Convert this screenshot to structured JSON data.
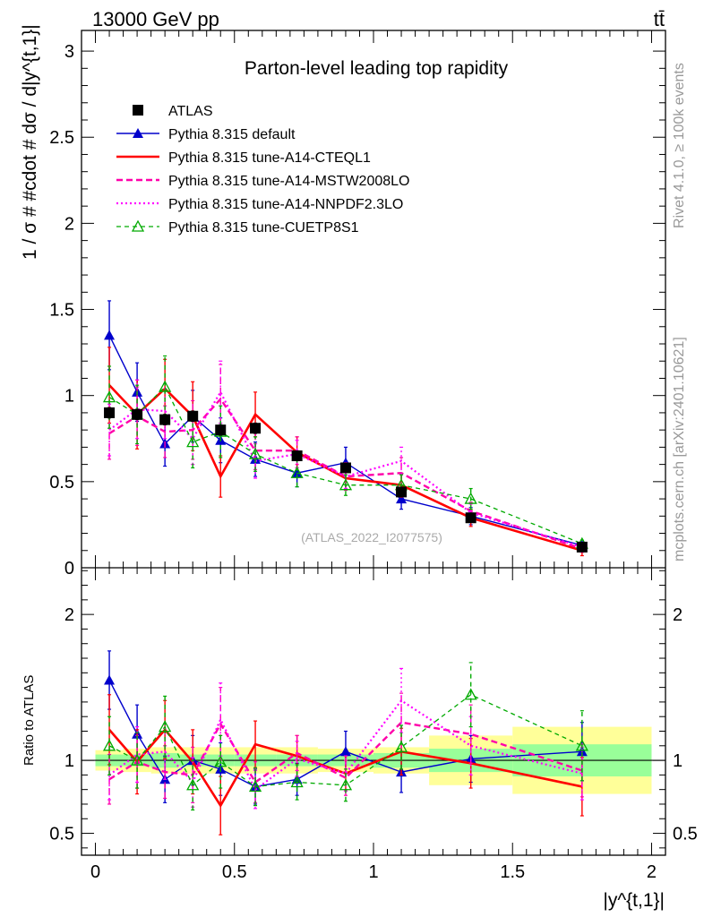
{
  "header": {
    "energy_label": "13000 GeV pp",
    "process_label": "tt̄",
    "rivet_label": "Rivet 4.1.0, ≥ 100k events",
    "mcplots_label": "mcplots.cern.ch [arXiv:2401.10621]"
  },
  "chart_data": [
    {
      "type": "line",
      "title": "Parton-level leading top rapidity",
      "watermark": "(ATLAS_2022_I2077575)",
      "xlabel": "|y^{t,1}|",
      "ylabel": "1 / σ # #cdot # dσ / d|y^{t,1}|",
      "xlim": [
        -0.05,
        2.05
      ],
      "ylim": [
        0,
        3.12
      ],
      "y_ticks": [
        0,
        0.5,
        1,
        1.5,
        2,
        2.5,
        3
      ],
      "y_tick_labels": [
        "0",
        "0.5",
        "1",
        "1.5",
        "2",
        "2.5",
        "3"
      ],
      "bin_edges": [
        0,
        0.1,
        0.2,
        0.3,
        0.4,
        0.5,
        0.65,
        0.8,
        1.0,
        1.2,
        1.5,
        2.0
      ],
      "x": [
        0.05,
        0.15,
        0.25,
        0.35,
        0.45,
        0.575,
        0.725,
        0.9,
        1.1,
        1.35,
        1.75
      ],
      "legend": {
        "position": "top-left"
      },
      "series": [
        {
          "name": "ATLAS",
          "style": "data",
          "color": "#000000",
          "values": [
            0.9,
            0.89,
            0.86,
            0.88,
            0.8,
            0.81,
            0.65,
            0.58,
            0.44,
            0.29,
            0.12
          ],
          "errors": [
            0.03,
            0.03,
            0.03,
            0.03,
            0.03,
            0.03,
            0.02,
            0.02,
            0.02,
            0.015,
            0.01
          ]
        },
        {
          "name": "Pythia 8.315 default",
          "style": "default",
          "color": "#0000cc",
          "values": [
            1.35,
            1.02,
            0.72,
            0.88,
            0.74,
            0.63,
            0.55,
            0.61,
            0.4,
            0.3,
            0.13
          ],
          "errors": [
            0.2,
            0.17,
            0.13,
            0.15,
            0.13,
            0.1,
            0.08,
            0.09,
            0.06,
            0.05,
            0.02
          ]
        },
        {
          "name": "Pythia 8.315 tune-A14-CTEQL1",
          "style": "cteq",
          "color": "#ff0000",
          "values": [
            1.06,
            0.89,
            1.04,
            0.88,
            0.53,
            0.89,
            0.67,
            0.52,
            0.48,
            0.29,
            0.1
          ],
          "errors": [
            0.22,
            0.2,
            0.17,
            0.2,
            0.12,
            0.13,
            0.09,
            0.07,
            0.07,
            0.05,
            0.03
          ]
        },
        {
          "name": "Pythia 8.315 tune-A14-MSTW2008LO",
          "style": "mstw",
          "color": "#ff00aa",
          "values": [
            0.78,
            0.88,
            0.79,
            0.8,
            0.98,
            0.68,
            0.68,
            0.53,
            0.55,
            0.33,
            0.11
          ],
          "errors": [
            0.15,
            0.17,
            0.15,
            0.17,
            0.2,
            0.11,
            0.08,
            0.08,
            0.09,
            0.05,
            0.02
          ]
        },
        {
          "name": "Pythia 8.315 tune-A14-NNPDF2.3LO",
          "style": "nnpdf",
          "color": "#ff00ff",
          "values": [
            0.8,
            0.92,
            0.91,
            0.75,
            1.02,
            0.62,
            0.66,
            0.53,
            0.62,
            0.32,
            0.12
          ],
          "errors": [
            0.15,
            0.17,
            0.16,
            0.15,
            0.18,
            0.1,
            0.08,
            0.07,
            0.08,
            0.05,
            0.02
          ]
        },
        {
          "name": "Pythia 8.315 tune-CUETP8S1",
          "style": "cuetp",
          "color": "#00aa00",
          "values": [
            0.99,
            0.89,
            1.05,
            0.73,
            0.79,
            0.66,
            0.55,
            0.48,
            0.48,
            0.4,
            0.14
          ],
          "errors": [
            0.18,
            0.17,
            0.18,
            0.15,
            0.15,
            0.1,
            0.08,
            0.06,
            0.06,
            0.06,
            0.02
          ]
        }
      ]
    },
    {
      "type": "line",
      "title": "",
      "xlabel": "|y^{t,1}|",
      "ylabel": "Ratio to ATLAS",
      "xlim": [
        -0.05,
        2.05
      ],
      "ylim": [
        0.35,
        2.32
      ],
      "y_ticks": [
        0.5,
        1,
        2
      ],
      "y_tick_labels": [
        "0.5",
        "1",
        "2"
      ],
      "x_ticks": [
        0,
        0.5,
        1,
        1.5,
        2
      ],
      "x_tick_labels": [
        "0",
        "0.5",
        "1",
        "1.5",
        "2"
      ],
      "bin_edges": [
        0,
        0.1,
        0.2,
        0.3,
        0.4,
        0.5,
        0.65,
        0.8,
        1.0,
        1.2,
        1.5,
        2.0
      ],
      "x": [
        0.05,
        0.15,
        0.25,
        0.35,
        0.45,
        0.575,
        0.725,
        0.9,
        1.1,
        1.35,
        1.75
      ],
      "band_yellow_half": [
        0.07,
        0.08,
        0.09,
        0.09,
        0.09,
        0.09,
        0.09,
        0.08,
        0.09,
        0.17,
        0.23
      ],
      "band_green_half": [
        0.04,
        0.04,
        0.05,
        0.04,
        0.04,
        0.04,
        0.04,
        0.04,
        0.05,
        0.08,
        0.11
      ],
      "series": [
        {
          "name": "Pythia 8.315 default",
          "style": "default",
          "color": "#0000cc",
          "values": [
            1.55,
            1.18,
            0.87,
            1.0,
            0.94,
            0.82,
            0.87,
            1.06,
            0.92,
            1.01,
            1.06
          ],
          "errors": [
            0.2,
            0.2,
            0.16,
            0.17,
            0.18,
            0.12,
            0.11,
            0.14,
            0.14,
            0.16,
            0.2
          ]
        },
        {
          "name": "Pythia 8.315 tune-A14-CTEQL1",
          "style": "cteq",
          "color": "#ff0000",
          "values": [
            1.21,
            0.99,
            1.21,
            0.99,
            0.69,
            1.11,
            1.03,
            0.91,
            1.06,
            0.98,
            0.82
          ],
          "errors": [
            0.24,
            0.22,
            0.2,
            0.22,
            0.2,
            0.16,
            0.14,
            0.12,
            0.16,
            0.17,
            0.2
          ]
        },
        {
          "name": "Pythia 8.315 tune-A14-MSTW2008LO",
          "style": "mstw",
          "color": "#ff00aa",
          "values": [
            0.87,
            0.99,
            0.92,
            0.9,
            1.25,
            0.85,
            1.05,
            0.88,
            1.26,
            1.18,
            0.93
          ],
          "errors": [
            0.17,
            0.18,
            0.18,
            0.19,
            0.25,
            0.14,
            0.12,
            0.12,
            0.2,
            0.2,
            0.18
          ]
        },
        {
          "name": "Pythia 8.315 tune-A14-NNPDF2.3LO",
          "style": "nnpdf",
          "color": "#ff00ff",
          "values": [
            0.9,
            1.04,
            1.06,
            0.85,
            1.28,
            0.8,
            1.01,
            0.91,
            1.41,
            1.1,
            0.91
          ],
          "errors": [
            0.17,
            0.19,
            0.19,
            0.17,
            0.25,
            0.13,
            0.12,
            0.12,
            0.22,
            0.2,
            0.18
          ]
        },
        {
          "name": "Pythia 8.315 tune-CUETP8S1",
          "style": "cuetp",
          "color": "#00aa00",
          "values": [
            1.1,
            1.0,
            1.23,
            0.83,
            0.99,
            0.82,
            0.85,
            0.83,
            1.09,
            1.45,
            1.1
          ],
          "errors": [
            0.2,
            0.19,
            0.21,
            0.17,
            0.18,
            0.13,
            0.12,
            0.11,
            0.15,
            0.22,
            0.24
          ]
        }
      ]
    }
  ]
}
